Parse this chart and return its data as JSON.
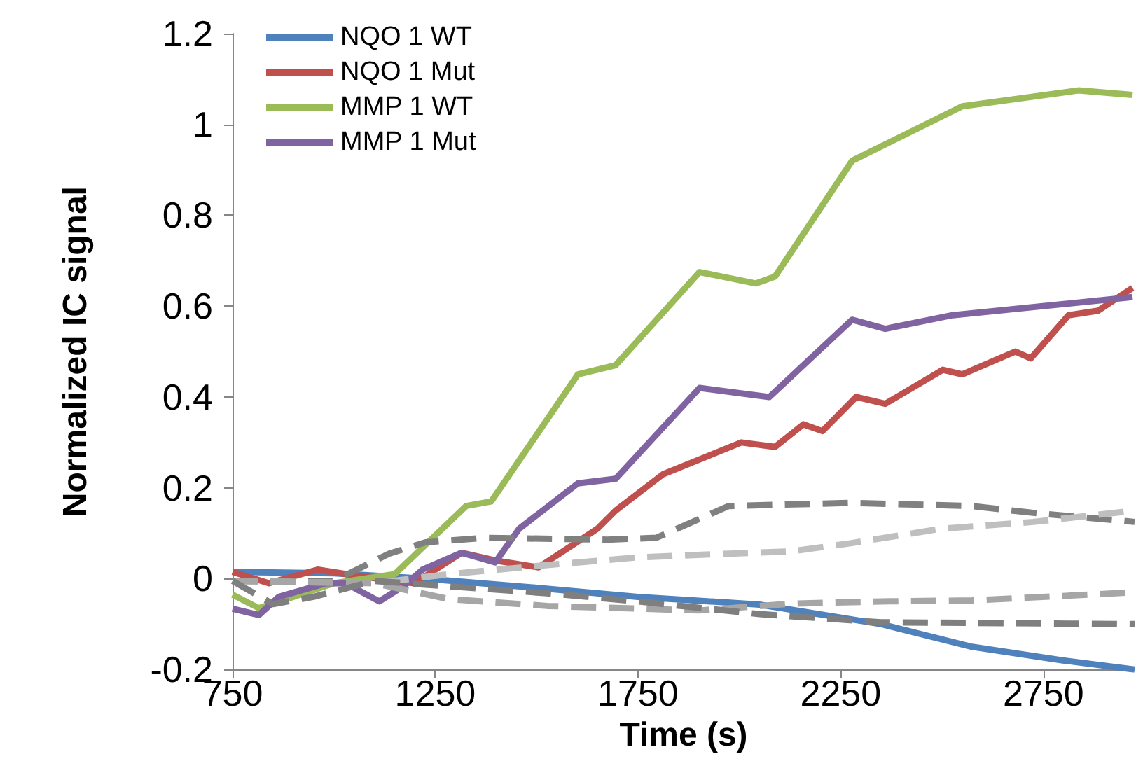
{
  "chart_data": {
    "type": "line",
    "xlabel": "Time (s)",
    "ylabel": "Normalized IC signal",
    "xlim": [
      750,
      2975
    ],
    "xticks": [
      750,
      1250,
      1750,
      2250,
      2750
    ],
    "ylim": [
      -0.2,
      1.2
    ],
    "yticks": [
      -0.2,
      0,
      0.2,
      0.4,
      0.6,
      0.8,
      1,
      1.2
    ],
    "grid": false,
    "legend": "top left",
    "marker": "none",
    "line_style": "solid",
    "series": [
      {
        "name": "NQO 1 WT",
        "color": "#4f81bd",
        "x": [
          750,
          1000,
          1226,
          1500,
          1750,
          2050,
          2350,
          2574,
          2798,
          2975
        ],
        "values": [
          0.015,
          0.012,
          0.0,
          -0.02,
          -0.04,
          -0.057,
          -0.1,
          -0.15,
          -0.18,
          -0.2
        ]
      },
      {
        "name": "NQO 1 Mut",
        "color": "#c0504d",
        "x": [
          750,
          840,
          960,
          1067,
          1198,
          1315,
          1398,
          1505,
          1650,
          1695,
          1812,
          2005,
          2088,
          2158,
          2205,
          2288,
          2360,
          2502,
          2550,
          2681,
          2719,
          2812,
          2885,
          2970
        ],
        "values": [
          0.015,
          -0.01,
          0.02,
          0.005,
          -0.01,
          0.057,
          0.04,
          0.025,
          0.11,
          0.15,
          0.23,
          0.3,
          0.29,
          0.34,
          0.325,
          0.4,
          0.385,
          0.46,
          0.45,
          0.5,
          0.485,
          0.58,
          0.59,
          0.64
        ]
      },
      {
        "name": "MMP 1 WT",
        "color": "#9bbb59",
        "x": [
          750,
          815,
          900,
          1000,
          1150,
          1326,
          1388,
          1602,
          1695,
          1902,
          2041,
          2088,
          2278,
          2550,
          2836,
          2970
        ],
        "values": [
          -0.035,
          -0.065,
          -0.04,
          -0.01,
          0.01,
          0.16,
          0.17,
          0.45,
          0.47,
          0.675,
          0.65,
          0.665,
          0.92,
          1.04,
          1.075,
          1.065
        ]
      },
      {
        "name": "MMP 1 Mut",
        "color": "#8064a2",
        "x": [
          750,
          815,
          864,
          981,
          1029,
          1112,
          1174,
          1219,
          1315,
          1398,
          1457,
          1602,
          1695,
          1902,
          2074,
          2278,
          2360,
          2526,
          2970
        ],
        "values": [
          -0.066,
          -0.08,
          -0.04,
          -0.01,
          -0.01,
          -0.05,
          -0.015,
          0.02,
          0.057,
          0.036,
          0.11,
          0.21,
          0.22,
          0.42,
          0.4,
          0.57,
          0.55,
          0.58,
          0.62
        ]
      },
      {
        "color": "#808080",
        "line_style": "dashed",
        "x": [
          750,
          1000,
          1136,
          1226,
          1374,
          1674,
          1795,
          1974,
          2274,
          2574,
          2725,
          2975
        ],
        "values": [
          -0.005,
          -0.005,
          0.055,
          0.08,
          0.09,
          0.086,
          0.09,
          0.16,
          0.167,
          0.16,
          0.145,
          0.125
        ]
      },
      {
        "color": "#bfbfbf",
        "line_style": "dashed",
        "x": [
          750,
          1100,
          1284,
          1526,
          1750,
          1974,
          2126,
          2274,
          2498,
          2725,
          2975
        ],
        "values": [
          -0.005,
          -0.01,
          0.01,
          0.03,
          0.047,
          0.055,
          0.06,
          0.078,
          0.11,
          0.125,
          0.15
        ]
      },
      {
        "color": "#a6a6a6",
        "line_style": "dashed",
        "x": [
          750,
          1100,
          1284,
          1526,
          1902,
          2126,
          2350,
          2574,
          2975
        ],
        "values": [
          -0.005,
          -0.01,
          -0.045,
          -0.06,
          -0.07,
          -0.055,
          -0.05,
          -0.048,
          -0.03
        ]
      },
      {
        "color": "#7f7f7f",
        "line_style": "dashed",
        "x": [
          750,
          850,
          950,
          1100,
          1302,
          1526,
          1750,
          2050,
          2350,
          2975
        ],
        "values": [
          -0.005,
          -0.056,
          -0.04,
          -0.005,
          -0.018,
          -0.032,
          -0.05,
          -0.078,
          -0.096,
          -0.1
        ]
      }
    ]
  }
}
